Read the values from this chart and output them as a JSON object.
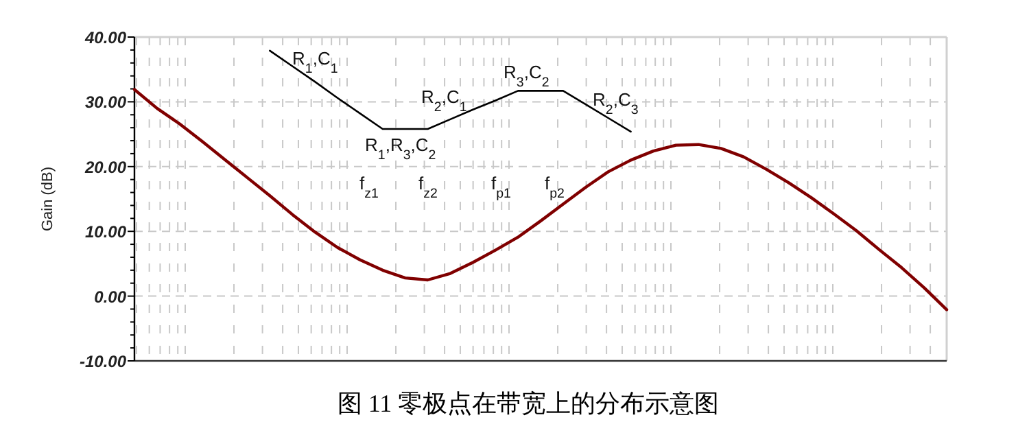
{
  "chart_data": {
    "type": "line",
    "title": "图 11 零极点在带宽上的分布示意图",
    "ylabel": "Gain (dB)",
    "categories": [
      null,
      null,
      null,
      null,
      null,
      null,
      null,
      null,
      null,
      null,
      null,
      null,
      null,
      null,
      null,
      null,
      null,
      null,
      null,
      null,
      null,
      null,
      null,
      null,
      null,
      null,
      null,
      null,
      null,
      null,
      null,
      null,
      null,
      null,
      null,
      null,
      null
    ],
    "series": [
      {
        "color": "#800000",
        "values": [
          31.9,
          29.0,
          26.6,
          23.9,
          21.1,
          18.3,
          15.5,
          12.6,
          9.9,
          7.5,
          5.6,
          4.0,
          2.8,
          2.5,
          3.5,
          5.2,
          7.1,
          9.1,
          11.6,
          14.2,
          16.8,
          19.2,
          21.0,
          22.4,
          23.3,
          23.4,
          22.8,
          21.5,
          19.6,
          17.5,
          15.2,
          12.7,
          10.1,
          7.2,
          4.4,
          1.3,
          -2.1
        ]
      },
      {
        "color": "#000000",
        "values": [
          null,
          null,
          null,
          null,
          null,
          null,
          37.9,
          35.5,
          33.1,
          30.6,
          28.2,
          25.8,
          25.8,
          25.8,
          27.3,
          28.8,
          30.2,
          31.7,
          31.7,
          31.7,
          29.6,
          27.5,
          25.4,
          null,
          null,
          null,
          null,
          null,
          null,
          null,
          null,
          null,
          null,
          null,
          null,
          null,
          null
        ]
      }
    ],
    "ylim": [
      -10,
      40
    ],
    "yticks": [
      {
        "value": -10,
        "label": "-10.00"
      },
      {
        "value": 0,
        "label": "0.00"
      },
      {
        "value": 10,
        "label": "10.00"
      },
      {
        "value": 20,
        "label": "20.00"
      },
      {
        "value": 30,
        "label": "30.00"
      },
      {
        "value": 40,
        "label": "40.00"
      }
    ],
    "grid": true,
    "tick_labels": "y",
    "annotations": [
      "R$_{1}$,C$_{1}$",
      "R$_{1}$,R$_{3}$,C$_{2}$",
      "R$_{2}$,C$_{1}$",
      "R$_{3}$,C$_{2}$",
      "R$_{2}$,C$_{3}$",
      "f$_{z1}$",
      "f$_{z2}$",
      "f$_{p1}$",
      "f$_{p2}$"
    ]
  }
}
